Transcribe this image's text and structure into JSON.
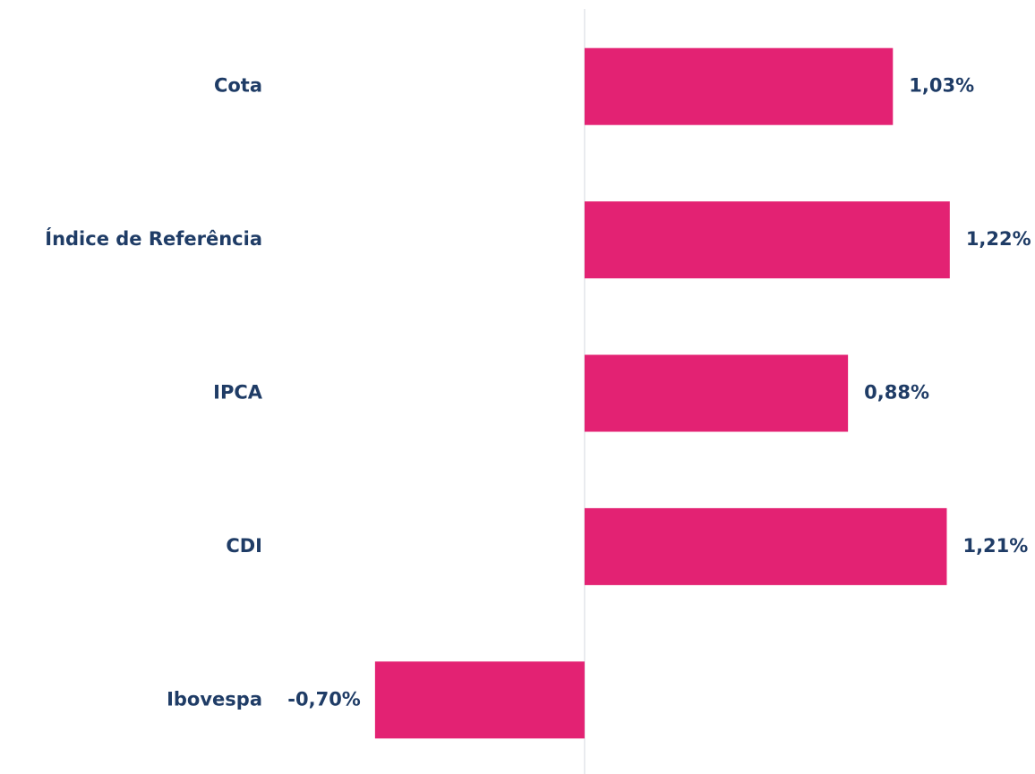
{
  "chart_data": {
    "type": "bar",
    "orientation": "horizontal",
    "categories": [
      "Cota",
      "Índice de Referência",
      "IPCA",
      "CDI",
      "Ibovespa"
    ],
    "values": [
      1.03,
      1.22,
      0.88,
      1.21,
      -0.7
    ],
    "value_labels": [
      "1,03%",
      "1,22%",
      "0,88%",
      "1,21%",
      "-0,70%"
    ],
    "color": "#e32273",
    "xlim": [
      -0.9,
      1.4
    ]
  }
}
